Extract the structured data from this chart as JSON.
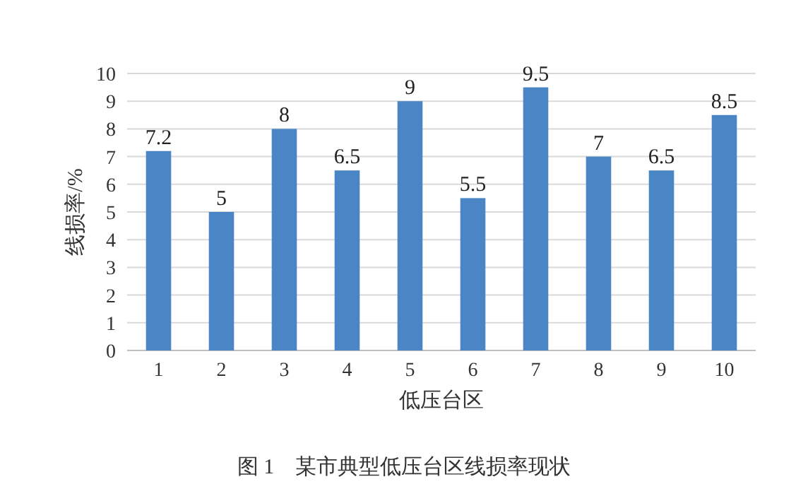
{
  "chart_data": {
    "type": "bar",
    "xlabel": "低压台区",
    "ylabel": "线损率/%",
    "annotations": [
      "图 1　某市典型低压台区线损率现状"
    ],
    "categories": [
      "1",
      "2",
      "3",
      "4",
      "5",
      "6",
      "7",
      "8",
      "9",
      "10"
    ],
    "values": [
      7.2,
      5,
      8,
      6.5,
      9,
      5.5,
      9.5,
      7,
      6.5,
      8.5
    ],
    "color": "#4a86c6",
    "ylim": [
      0,
      10
    ],
    "yticks": [
      0,
      1,
      2,
      3,
      4,
      5,
      6,
      7,
      8,
      9,
      10
    ],
    "grid": "y",
    "data_labels": true
  }
}
